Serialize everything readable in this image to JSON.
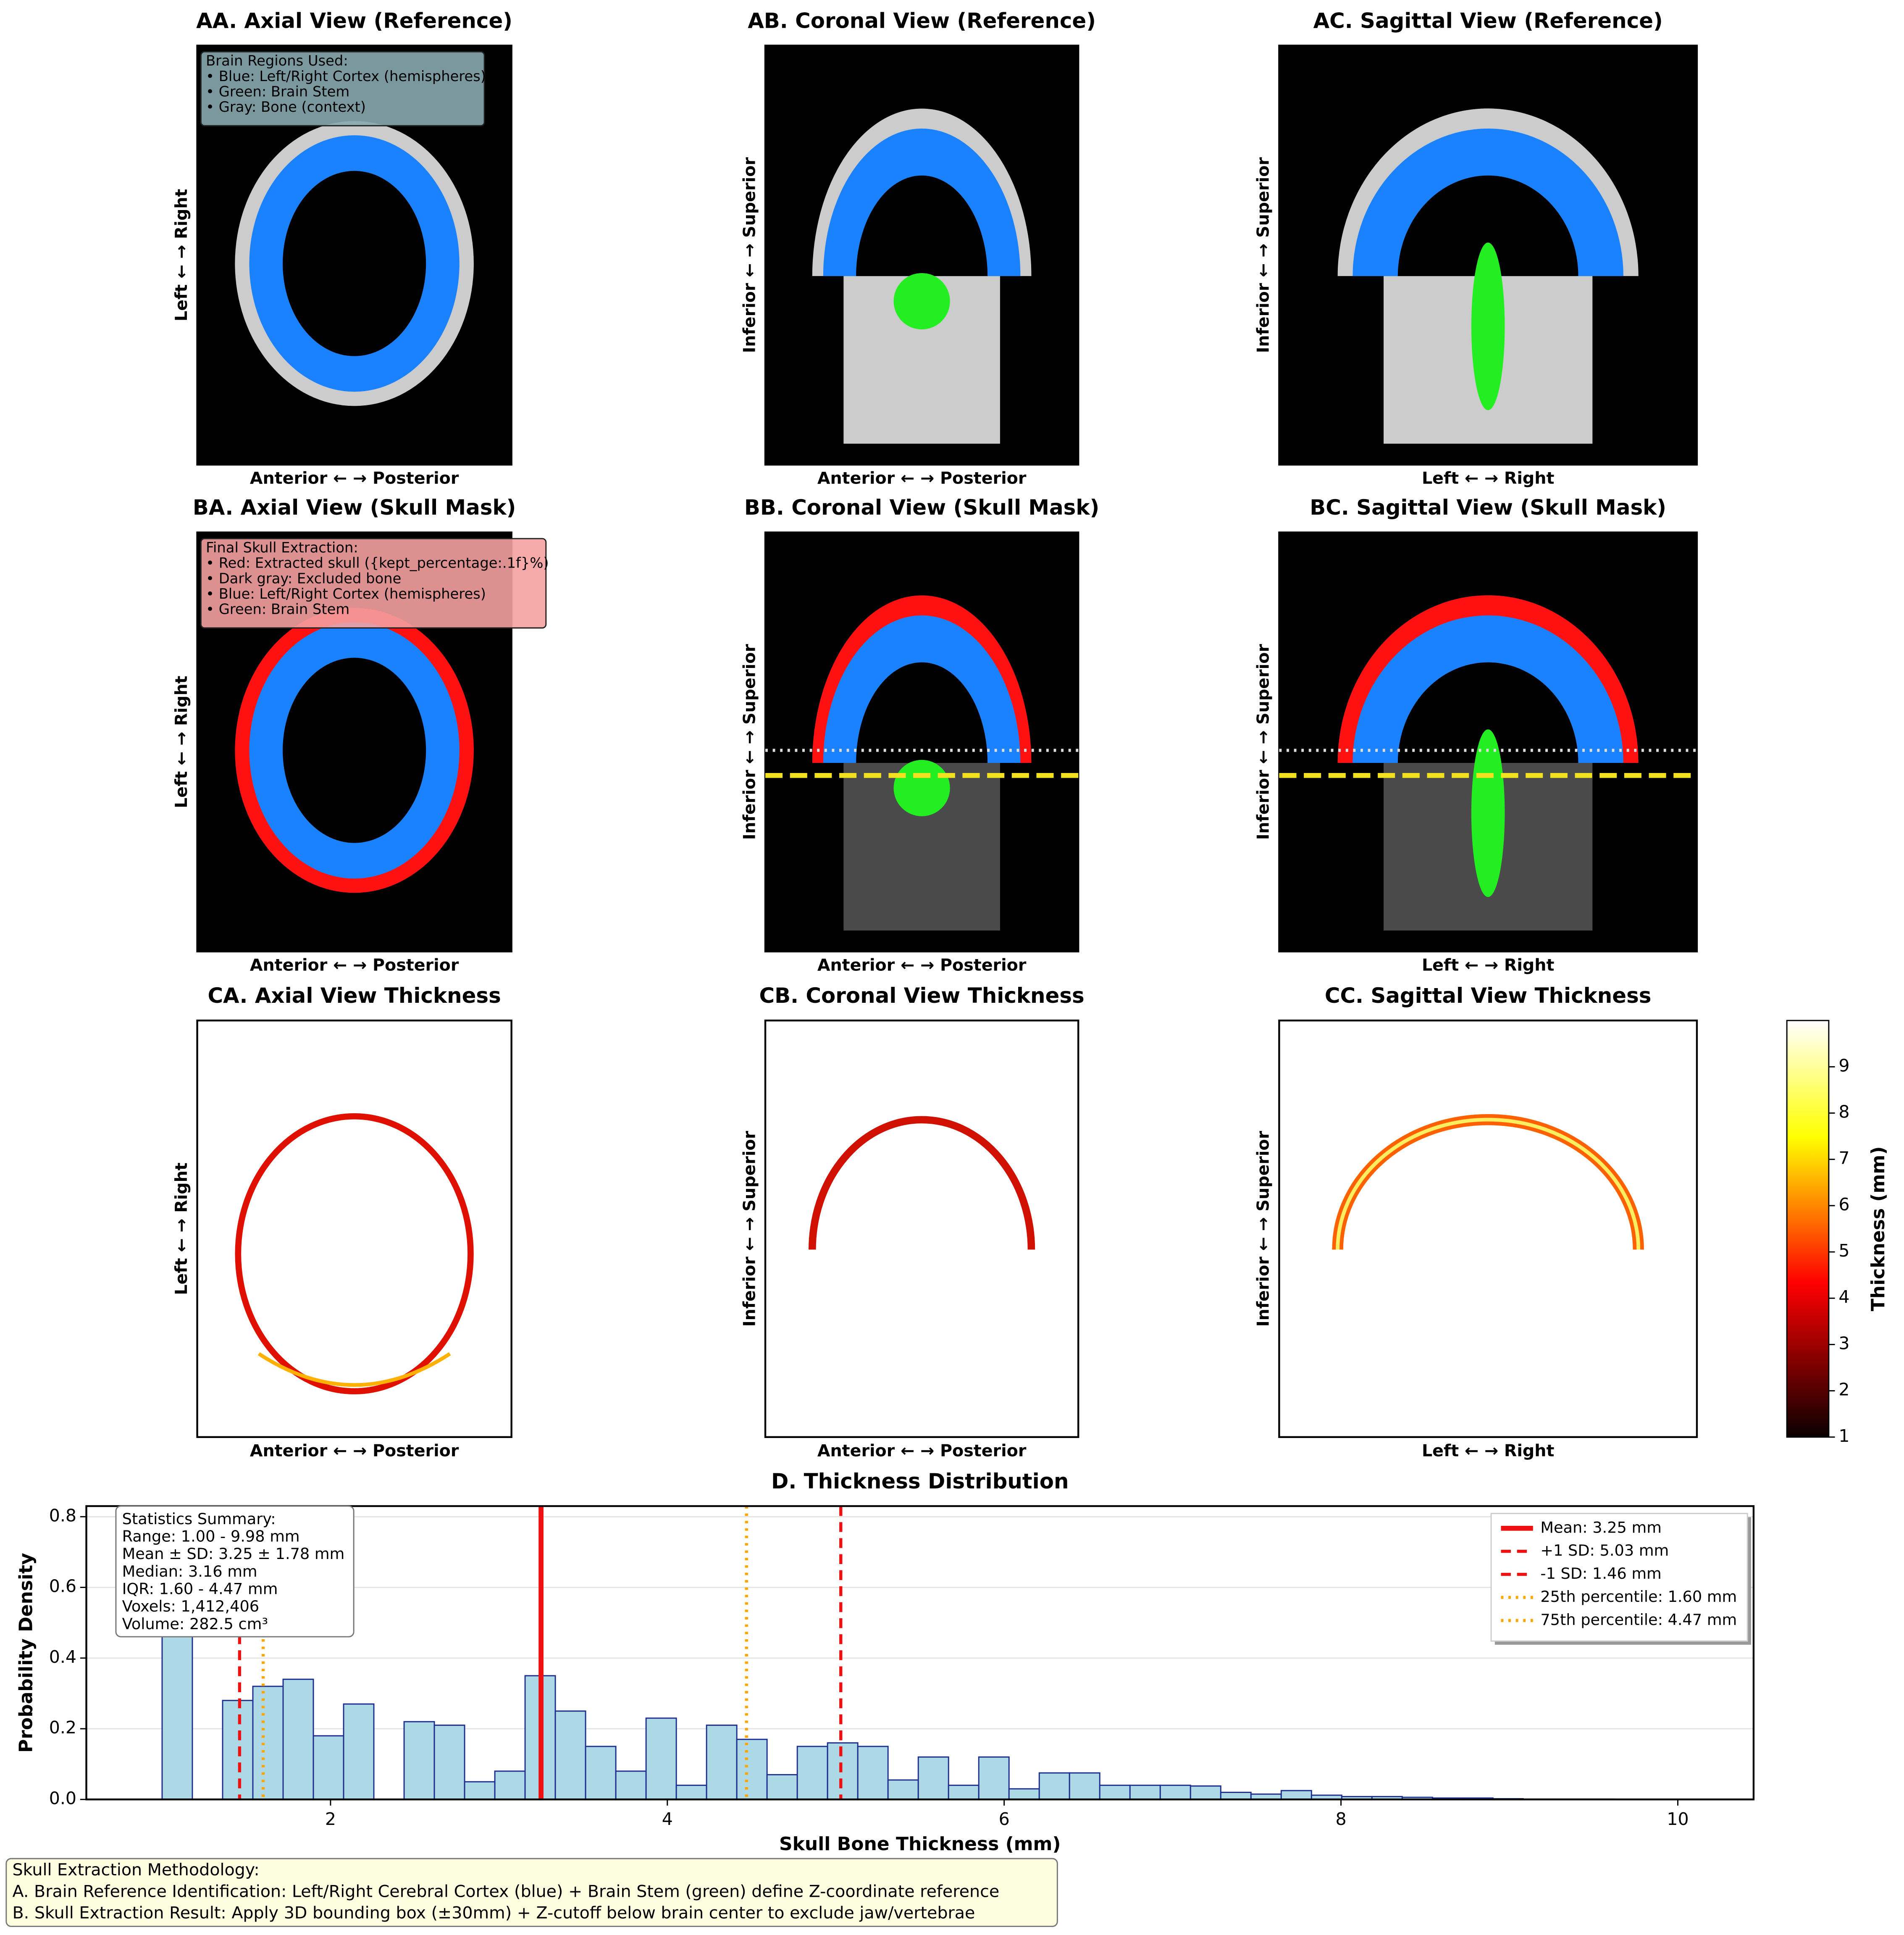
{
  "panels": [
    {
      "title": "AA. Axial View (Reference)",
      "xlabel": "Anterior ← → Posterior",
      "ylabel": "Left ← → Right",
      "view": "axial",
      "mode": "reference",
      "legend": [
        "Brain Regions Used:",
        "• Blue: Left/Right Cortex (hemispheres)",
        "• Green: Brain Stem",
        "• Gray: Bone (context)"
      ]
    },
    {
      "title": "AB. Coronal View (Reference)",
      "xlabel": "Anterior ← → Posterior",
      "ylabel": "Inferior ← → Superior",
      "view": "coronal",
      "mode": "reference"
    },
    {
      "title": "AC. Sagittal View (Reference)",
      "xlabel": "Left ← → Right",
      "ylabel": "Inferior ← → Superior",
      "view": "sagittal",
      "mode": "reference"
    },
    {
      "title": "BA. Axial View (Skull Mask)",
      "xlabel": "Anterior ← → Posterior",
      "ylabel": "Left ← → Right",
      "view": "axial",
      "mode": "mask",
      "legend": [
        "Final Skull Extraction:",
        "• Red: Extracted skull ({kept_percentage:.1f}%)",
        "• Dark gray: Excluded bone",
        "• Blue: Left/Right Cortex (hemispheres)",
        "• Green: Brain Stem"
      ]
    },
    {
      "title": "BB. Coronal View (Skull Mask)",
      "xlabel": "Anterior ← → Posterior",
      "ylabel": "Inferior ← → Superior",
      "view": "coronal",
      "mode": "mask"
    },
    {
      "title": "BC. Sagittal View (Skull Mask)",
      "xlabel": "Left ← → Right",
      "ylabel": "Inferior ← → Superior",
      "view": "sagittal",
      "mode": "mask"
    },
    {
      "title": "CA. Axial View Thickness",
      "xlabel": "Anterior ← → Posterior",
      "ylabel": "Left ← → Right",
      "view": "axial",
      "mode": "thickness"
    },
    {
      "title": "CB. Coronal View Thickness",
      "xlabel": "Anterior ← → Posterior",
      "ylabel": "Inferior ← → Superior",
      "view": "coronal",
      "mode": "thickness"
    },
    {
      "title": "CC. Sagittal View Thickness",
      "xlabel": "Left ← → Right",
      "ylabel": "Inferior ← → Superior",
      "view": "sagittal",
      "mode": "thickness"
    }
  ],
  "colorbar": {
    "label": "Thickness (mm)",
    "lim": [
      1,
      10
    ],
    "ticks": [
      1,
      2,
      3,
      4,
      5,
      6,
      7,
      8,
      9
    ]
  },
  "chart_data": {
    "type": "histogram",
    "title": "D. Thickness Distribution",
    "x_label": "Skull Bone Thickness (mm)",
    "y_label": "Probability Density",
    "color": "#add8e6",
    "edge_color": "#1f2f8f",
    "bins": [
      1.0,
      1.1796,
      1.3592,
      1.5388,
      1.7184,
      1.898,
      2.0776,
      2.2572,
      2.4368,
      2.6164,
      2.796,
      2.9756,
      3.1552,
      3.3348,
      3.5144,
      3.694,
      3.8736,
      4.0532,
      4.2328,
      4.4124,
      4.592,
      4.7716,
      4.9512,
      5.1308,
      5.3104,
      5.49,
      5.6696,
      5.8492,
      6.0288,
      6.2084,
      6.388,
      6.5676,
      6.7472,
      6.9268,
      7.1064,
      7.286,
      7.4656,
      7.6452,
      7.8248,
      8.0044,
      8.184,
      8.3636,
      8.5432,
      8.7228,
      8.9024,
      9.082,
      9.2616,
      9.4412,
      9.6208,
      9.8004,
      9.98
    ],
    "counts": [
      0.52,
      0,
      0.28,
      0.32,
      0.34,
      0.18,
      0.27,
      0,
      0.22,
      0.21,
      0.05,
      0.08,
      0.35,
      0.25,
      0.15,
      0.08,
      0.23,
      0.04,
      0.21,
      0.17,
      0.07,
      0.15,
      0.16,
      0.15,
      0.055,
      0.12,
      0.04,
      0.12,
      0.03,
      0.075,
      0.075,
      0.04,
      0.04,
      0.04,
      0.038,
      0.02,
      0.015,
      0.025,
      0.012,
      0.008,
      0.008,
      0.006,
      0.004,
      0.004,
      0.002,
      0.001,
      0.001,
      0.001,
      0.0005,
      0.0005
    ],
    "xlim": [
      0.55,
      10.45
    ],
    "ylim": [
      0,
      0.83
    ],
    "xticks": [
      2,
      4,
      6,
      8,
      10
    ],
    "yticks": [
      {
        "value": 0,
        "label": "0.0"
      },
      0.2,
      0.4,
      0.6,
      0.8
    ],
    "grid": true,
    "vlines": [
      {
        "name": "Mean: 3.25 mm",
        "value": 3.25,
        "color": "#ee1111",
        "style": "solid"
      },
      {
        "name": "+1 SD: 5.03 mm",
        "value": 5.03,
        "color": "#ee1111",
        "style": "dashed"
      },
      {
        "name": "-1 SD: 1.46 mm",
        "value": 1.46,
        "color": "#ee1111",
        "style": "dashed"
      },
      {
        "name": "25th percentile: 1.60 mm",
        "value": 1.6,
        "color": "#ffa500",
        "style": "dotted"
      },
      {
        "name": "75th percentile: 4.47 mm",
        "value": 4.47,
        "color": "#ffa500",
        "style": "dotted"
      }
    ],
    "legend_position": "upper right",
    "annotation": [
      "Statistics Summary:",
      "Range: 1.00 - 9.98 mm",
      "Mean ± SD: 3.25 ± 1.78 mm",
      "Median: 3.16 mm",
      "IQR: 1.60 - 4.47 mm",
      "Voxels: 1,412,406",
      "Volume: 282.5 cm³"
    ]
  },
  "methodology": [
    "Skull Extraction Methodology:",
    "A. Brain Reference Identification: Left/Right Cerebral Cortex (blue) + Brain Stem (green) define Z-coordinate reference",
    "B. Skull Extraction Result: Apply 3D bounding box (±30mm) + Z-cutoff below brain center to exclude jaw/vertebrae"
  ]
}
